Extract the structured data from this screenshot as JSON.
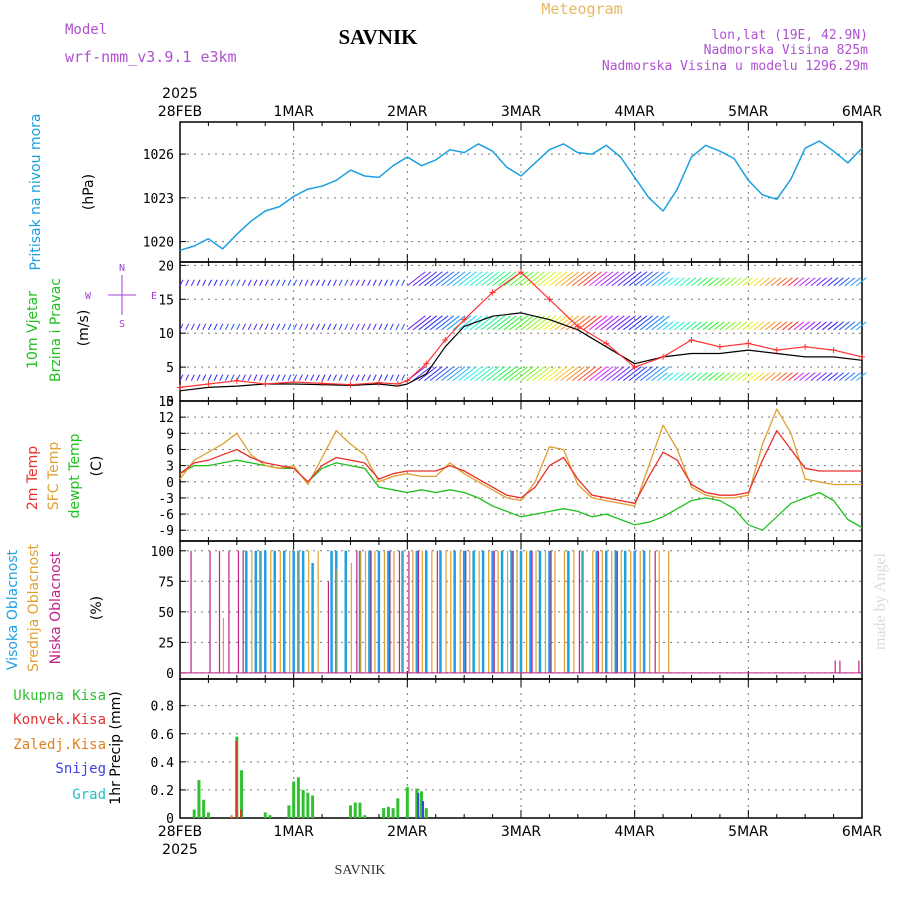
{
  "header": {
    "model_label": "Model",
    "model_name": "wrf-nmm_v3.9.1 e3km",
    "station": "SAVNIK",
    "product": "Meteogram",
    "lonlat": "lon,lat (19E, 42.9N)",
    "elevation": "Nadmorska Visina 825m",
    "model_elevation": "Nadmorska Visina u modelu 1296.29m",
    "credit": "made by Angel",
    "footer": "SAVNIK"
  },
  "colors": {
    "pressure": "#1aa0e0",
    "wind_obs": "#ff3030",
    "wind_model": "#000000",
    "temp_2m": "#e8302a",
    "temp_sfc": "#e0a030",
    "dewpoint": "#20c020",
    "cloud_high": "#20a0e0",
    "cloud_mid": "#e0a030",
    "cloud_low": "#c0208a",
    "precip_total": "#30c030",
    "precip_conv": "#e03030",
    "precip_frz": "#e08020",
    "snow": "#4040e0",
    "hail": "#20c0c0",
    "grid": "#777777"
  },
  "chart_data": [
    {
      "type": "line",
      "panel": "pressure",
      "ylabel_a": "Pritisak na nivou mora",
      "ylabel_b": "(hPa)",
      "yticks": [
        1020,
        1023,
        1026
      ],
      "ylim": [
        1018.6,
        1028.2
      ],
      "x_hours": [
        0,
        3,
        6,
        9,
        12,
        15,
        18,
        21,
        24,
        27,
        30,
        33,
        36,
        39,
        42,
        45,
        48,
        51,
        54,
        57,
        60,
        63,
        66,
        69,
        72,
        75,
        78,
        81,
        84,
        87,
        90,
        93,
        96,
        99,
        102,
        105,
        108,
        111,
        114,
        117,
        120,
        123,
        126,
        129,
        132,
        135,
        138,
        141,
        144
      ],
      "series": [
        {
          "name": "Pritisak na nivou mora",
          "values": [
            1019.4,
            1019.7,
            1020.2,
            1019.5,
            1020.5,
            1021.4,
            1022.1,
            1022.4,
            1023.1,
            1023.6,
            1023.8,
            1024.2,
            1024.9,
            1024.5,
            1024.4,
            1025.2,
            1025.8,
            1025.2,
            1025.6,
            1026.3,
            1026.1,
            1026.7,
            1026.2,
            1025.1,
            1024.5,
            1025.4,
            1026.3,
            1026.7,
            1026.1,
            1026.0,
            1026.6,
            1025.8,
            1024.4,
            1023.0,
            1022.1,
            1023.6,
            1025.8,
            1026.6,
            1026.2,
            1025.7,
            1024.2,
            1023.2,
            1022.9,
            1024.3,
            1026.4,
            1026.9,
            1026.2,
            1025.4,
            1026.4
          ]
        }
      ]
    },
    {
      "type": "line",
      "panel": "wind",
      "ylabel_a": "10m Vjetar",
      "ylabel_b": "Brzina i Pravac",
      "ylabel_c": "(m/s)",
      "compass": {
        "n": "N",
        "s": "S",
        "e": "E",
        "w": "W"
      },
      "yticks": [
        0,
        5,
        10,
        15,
        20
      ],
      "ylim": [
        0,
        20.5
      ],
      "x_hours": [
        0,
        6,
        12,
        18,
        24,
        30,
        36,
        42,
        46,
        48,
        52,
        56,
        60,
        66,
        72,
        78,
        84,
        90,
        96,
        102,
        108,
        114,
        120,
        126,
        132,
        138,
        144
      ],
      "series": [
        {
          "name": "wind_obs",
          "values": [
            2.0,
            2.5,
            3.0,
            2.5,
            2.8,
            2.6,
            2.4,
            2.7,
            2.5,
            3.0,
            5.5,
            9.0,
            12.0,
            16.0,
            19.0,
            15.0,
            11.0,
            8.5,
            5.0,
            6.5,
            9.0,
            8.0,
            8.5,
            7.5,
            8.0,
            7.5,
            6.5
          ]
        },
        {
          "name": "wind_model",
          "values": [
            1.5,
            2.0,
            2.2,
            2.5,
            2.5,
            2.4,
            2.3,
            2.5,
            2.2,
            2.5,
            4.0,
            8.0,
            11.0,
            12.5,
            13.0,
            12.0,
            10.5,
            8.0,
            5.5,
            6.5,
            7.0,
            7.0,
            7.5,
            7.0,
            6.5,
            6.5,
            6.0
          ]
        }
      ]
    },
    {
      "type": "line",
      "panel": "temperature",
      "ylabel_a": "2m Temp",
      "ylabel_b": "SFC Temp",
      "ylabel_c": "dewpt Temp",
      "ylabel_d": "(C)",
      "yticks": [
        -9,
        -6,
        -3,
        0,
        3,
        6,
        9,
        12,
        15
      ],
      "ylim": [
        -11,
        15
      ],
      "x_hours": [
        0,
        3,
        6,
        9,
        12,
        15,
        18,
        21,
        24,
        27,
        30,
        33,
        36,
        39,
        42,
        45,
        48,
        51,
        54,
        57,
        60,
        63,
        66,
        69,
        72,
        75,
        78,
        81,
        84,
        87,
        90,
        93,
        96,
        99,
        102,
        105,
        108,
        111,
        114,
        117,
        120,
        123,
        126,
        129,
        132,
        135,
        138,
        141,
        144
      ],
      "series": [
        {
          "name": "2m Temp",
          "values": [
            1.5,
            3.5,
            4.0,
            5.0,
            6.0,
            4.5,
            3.5,
            3.0,
            2.5,
            0.0,
            3.0,
            4.5,
            4.0,
            3.5,
            0.5,
            1.5,
            2.0,
            2.0,
            2.0,
            3.0,
            2.0,
            0.5,
            -1.0,
            -2.5,
            -3.0,
            -1.0,
            3.0,
            4.5,
            0.5,
            -2.5,
            -3.0,
            -3.5,
            -4.0,
            1.0,
            5.5,
            4.0,
            -0.5,
            -2.0,
            -2.5,
            -2.5,
            -2.0,
            4.0,
            9.5,
            6.0,
            2.5,
            2.0,
            2.0,
            2.0,
            2.0
          ]
        },
        {
          "name": "SFC Temp",
          "values": [
            0.5,
            4.0,
            5.5,
            7.0,
            9.0,
            5.0,
            3.0,
            2.5,
            3.0,
            -0.5,
            4.5,
            9.5,
            7.0,
            5.0,
            0.0,
            1.0,
            1.5,
            1.0,
            1.0,
            3.5,
            1.5,
            0.0,
            -1.5,
            -3.0,
            -3.5,
            0.0,
            6.5,
            6.0,
            -0.5,
            -3.0,
            -3.5,
            -4.0,
            -4.5,
            3.0,
            10.5,
            6.0,
            -1.0,
            -2.5,
            -3.0,
            -3.0,
            -2.5,
            7.0,
            13.5,
            9.0,
            0.5,
            0.0,
            -0.5,
            -0.5,
            -0.5
          ]
        },
        {
          "name": "dewpt Temp",
          "values": [
            1.5,
            3.0,
            3.0,
            3.5,
            4.0,
            3.5,
            3.0,
            2.5,
            2.5,
            0.0,
            2.5,
            3.5,
            3.0,
            2.5,
            -1.0,
            -1.5,
            -2.0,
            -1.5,
            -2.0,
            -1.5,
            -2.0,
            -3.0,
            -4.5,
            -5.5,
            -6.5,
            -6.0,
            -5.5,
            -5.0,
            -5.5,
            -6.5,
            -6.0,
            -7.0,
            -8.0,
            -7.5,
            -6.5,
            -5.0,
            -3.5,
            -3.0,
            -3.5,
            -5.0,
            -8.0,
            -9.0,
            -6.5,
            -4.0,
            -3.0,
            -2.0,
            -3.5,
            -7.0,
            -8.5
          ]
        }
      ]
    },
    {
      "type": "bar",
      "panel": "clouds",
      "ylabel_a": "Visoka Oblacnost",
      "ylabel_b": "Srednja Oblacnost",
      "ylabel_c": "Niska Oblacnost",
      "ylabel_d": "(%)",
      "yticks": [
        0,
        25,
        50,
        75,
        100
      ],
      "ylim": [
        -5,
        108
      ],
      "series": [
        {
          "name": "Visoka Oblacnost",
          "x_hours": [
            14,
            16,
            17,
            18,
            20,
            22,
            24,
            25,
            26,
            28,
            32,
            33,
            35,
            38,
            40,
            42,
            44,
            47,
            50,
            52,
            55,
            58,
            60,
            62,
            64,
            66,
            68,
            70,
            72,
            74,
            76,
            78,
            82,
            85,
            88,
            90,
            92,
            94,
            96,
            98
          ],
          "values": [
            100,
            100,
            100,
            100,
            100,
            100,
            100,
            100,
            100,
            90,
            100,
            100,
            100,
            100,
            100,
            100,
            100,
            100,
            100,
            100,
            100,
            100,
            100,
            100,
            100,
            100,
            100,
            100,
            100,
            100,
            100,
            100,
            100,
            100,
            100,
            100,
            100,
            100,
            100,
            100
          ]
        },
        {
          "name": "Srednja Oblacnost",
          "x_hours": [
            9,
            15,
            17,
            19,
            21,
            23,
            25,
            27,
            29,
            33,
            36,
            38,
            39,
            41,
            43,
            45,
            47,
            49,
            51,
            53,
            56,
            57,
            59,
            61,
            63,
            65,
            67,
            69,
            71,
            73,
            75,
            77,
            79,
            81,
            83,
            85,
            87,
            89,
            91,
            93,
            95,
            97,
            99,
            101,
            103
          ],
          "values": [
            45,
            100,
            100,
            100,
            100,
            100,
            100,
            100,
            100,
            85,
            90,
            100,
            100,
            100,
            100,
            100,
            100,
            100,
            100,
            100,
            100,
            100,
            100,
            100,
            100,
            100,
            100,
            100,
            100,
            100,
            100,
            100,
            100,
            100,
            100,
            100,
            100,
            100,
            100,
            100,
            100,
            100,
            100,
            100,
            100
          ]
        },
        {
          "name": "Niska Oblacnost",
          "x_hours": [
            2,
            6,
            8,
            10,
            12,
            13,
            31,
            37,
            40,
            44,
            46,
            48,
            50,
            54,
            60,
            66,
            70,
            74,
            78,
            84,
            88,
            92,
            100,
            138,
            139,
            143
          ],
          "values": [
            100,
            100,
            100,
            100,
            100,
            100,
            75,
            100,
            100,
            100,
            100,
            100,
            100,
            100,
            100,
            100,
            100,
            100,
            100,
            100,
            100,
            100,
            100,
            10,
            10,
            10
          ]
        }
      ]
    },
    {
      "type": "bar",
      "panel": "precip",
      "legend": [
        "Ukupna Kisa",
        "Konvek.Kisa",
        "Zaledj.Kisa",
        "Snijeg",
        "Grad"
      ],
      "ylabel": "1hr Precip (mm)",
      "yticks": [
        0,
        0.2,
        0.4,
        0.6,
        0.8
      ],
      "ylim": [
        0,
        0.99
      ],
      "x_labels_bottom": [
        "28FEB",
        "1MAR",
        "2MAR",
        "3MAR",
        "4MAR",
        "5MAR",
        "6MAR"
      ],
      "year_bottom": "2025",
      "series": [
        {
          "name": "Ukupna Kisa",
          "x_hours": [
            3,
            4,
            5,
            6,
            12,
            13,
            18,
            19,
            23,
            24,
            25,
            26,
            27,
            28,
            36,
            37,
            38,
            39,
            43,
            44,
            45,
            46,
            48,
            50,
            51,
            52
          ],
          "values": [
            0.06,
            0.27,
            0.13,
            0.04,
            0.58,
            0.34,
            0.04,
            0.02,
            0.09,
            0.26,
            0.29,
            0.2,
            0.18,
            0.16,
            0.09,
            0.11,
            0.11,
            0.02,
            0.07,
            0.08,
            0.07,
            0.14,
            0.22,
            0.21,
            0.19,
            0.07
          ]
        },
        {
          "name": "Konvek.Kisa",
          "x_hours": [
            12,
            13
          ],
          "values": [
            0.55,
            0.06
          ]
        },
        {
          "name": "Zaledj.Kisa",
          "x_hours": [
            11
          ],
          "values": [
            0.02
          ]
        },
        {
          "name": "Snijeg",
          "x_hours": [
            50,
            51
          ],
          "values": [
            0.18,
            0.12
          ]
        },
        {
          "name": "Grad",
          "x_hours": [],
          "values": []
        }
      ]
    }
  ],
  "x_axis": {
    "year_top": "2025",
    "labels": [
      "28FEB",
      "1MAR",
      "2MAR",
      "3MAR",
      "4MAR",
      "5MAR",
      "6MAR"
    ],
    "days": 6
  }
}
